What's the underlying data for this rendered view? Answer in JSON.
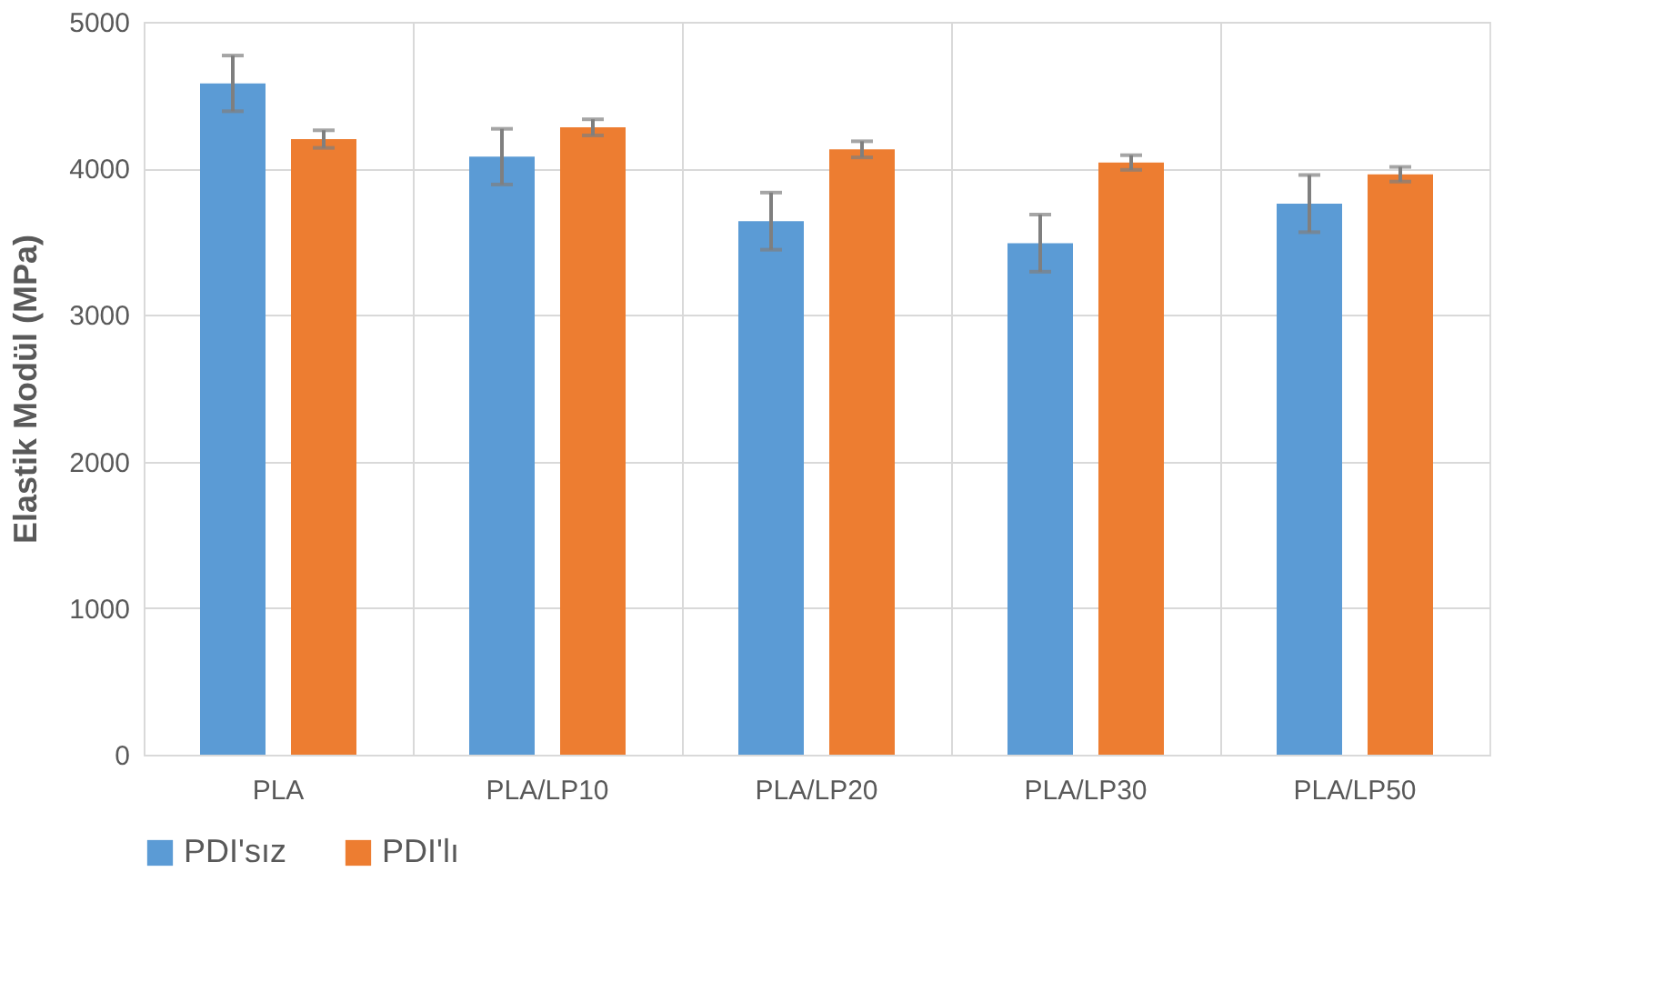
{
  "chart_data": {
    "type": "bar",
    "ylabel": "Elastik Modül (MPa)",
    "categories": [
      "PLA",
      "PLA/LP10",
      "PLA/LP20",
      "PLA/LP30",
      "PLA/LP50"
    ],
    "series": [
      {
        "name": "PDI'sız",
        "color": "#5b9bd5",
        "values": [
          4580,
          4080,
          3640,
          3490,
          3760
        ],
        "errors": [
          190,
          190,
          195,
          195,
          195
        ]
      },
      {
        "name": "PDI'lı",
        "color": "#ed7d31",
        "values": [
          4200,
          4280,
          4130,
          4040,
          3960
        ],
        "errors": [
          60,
          55,
          55,
          50,
          50
        ]
      }
    ],
    "ylim": [
      0,
      5000
    ],
    "yticks": [
      0,
      1000,
      2000,
      3000,
      4000,
      5000
    ],
    "grid": true,
    "legend": "bottom"
  }
}
